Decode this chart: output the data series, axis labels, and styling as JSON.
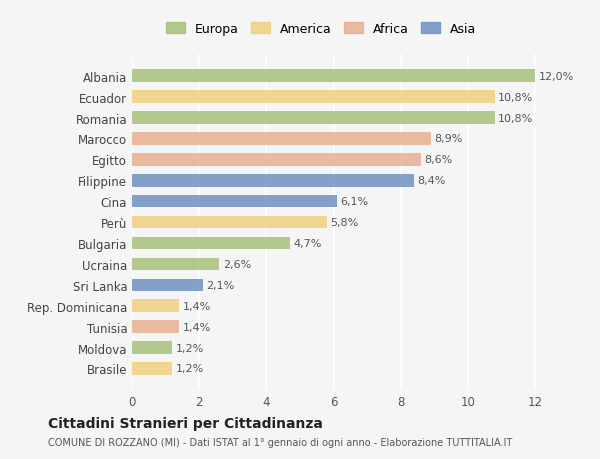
{
  "categories": [
    "Albania",
    "Ecuador",
    "Romania",
    "Marocco",
    "Egitto",
    "Filippine",
    "Cina",
    "Perù",
    "Bulgaria",
    "Ucraina",
    "Sri Lanka",
    "Rep. Dominicana",
    "Tunisia",
    "Moldova",
    "Brasile"
  ],
  "values": [
    12.0,
    10.8,
    10.8,
    8.9,
    8.6,
    8.4,
    6.1,
    5.8,
    4.7,
    2.6,
    2.1,
    1.4,
    1.4,
    1.2,
    1.2
  ],
  "labels": [
    "12,0%",
    "10,8%",
    "10,8%",
    "8,9%",
    "8,6%",
    "8,4%",
    "6,1%",
    "5,8%",
    "4,7%",
    "2,6%",
    "2,1%",
    "1,4%",
    "1,4%",
    "1,2%",
    "1,2%"
  ],
  "continents": [
    "Europa",
    "America",
    "Europa",
    "Africa",
    "Africa",
    "Asia",
    "Asia",
    "America",
    "Europa",
    "Europa",
    "Asia",
    "America",
    "Africa",
    "Europa",
    "America"
  ],
  "colors": {
    "Europa": "#a8c07a",
    "America": "#f0d080",
    "Africa": "#e8b090",
    "Asia": "#7090c0"
  },
  "legend_order": [
    "Europa",
    "America",
    "Africa",
    "Asia"
  ],
  "background_color": "#f5f5f5",
  "title": "Cittadini Stranieri per Cittadinanza",
  "subtitle": "COMUNE DI ROZZANO (MI) - Dati ISTAT al 1° gennaio di ogni anno - Elaborazione TUTTITALIA.IT",
  "xlim": [
    0,
    12.5
  ],
  "xticks": [
    0,
    2,
    4,
    6,
    8,
    10,
    12
  ]
}
